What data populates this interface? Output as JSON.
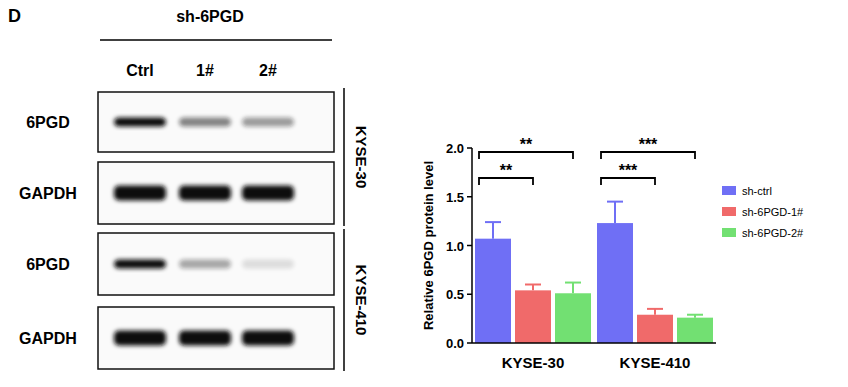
{
  "panel_label": "D",
  "blot": {
    "title": "sh-6PGD",
    "lanes": [
      "Ctrl",
      "1#",
      "2#"
    ],
    "rows": [
      {
        "label": "6PGD"
      },
      {
        "label": "GAPDH"
      },
      {
        "label": "6PGD"
      },
      {
        "label": "GAPDH"
      }
    ],
    "cell_lines": [
      "KYSE-30",
      "KYSE-410"
    ]
  },
  "chart_data": {
    "type": "bar",
    "y_label": "Relative 6PGD protein level",
    "categories": [
      "KYSE-30",
      "KYSE-410"
    ],
    "series": [
      {
        "name": "sh-ctrl",
        "color": "#6f6ff5",
        "values": [
          1.07,
          1.23
        ],
        "errors": [
          0.17,
          0.22
        ]
      },
      {
        "name": "sh-6PGD-1#",
        "color": "#f06a6a",
        "values": [
          0.54,
          0.29
        ],
        "errors": [
          0.06,
          0.06
        ]
      },
      {
        "name": "sh-6PGD-2#",
        "color": "#72e072",
        "values": [
          0.51,
          0.26
        ],
        "errors": [
          0.11,
          0.03
        ]
      }
    ],
    "ylim": [
      0,
      2.0
    ],
    "yticks": [
      {
        "value": 0,
        "label": "0.0"
      },
      {
        "value": 0.5,
        "label": "0.5"
      },
      {
        "value": 1.0,
        "label": "1.0"
      },
      {
        "value": 1.5,
        "label": "1.5"
      },
      {
        "value": 2.0,
        "label": "2.0"
      }
    ],
    "grid": false,
    "legend": "right",
    "annotations": [
      {
        "text": "**",
        "category": 0,
        "series": [
          0,
          1
        ]
      },
      {
        "text": "**",
        "category": 0,
        "series": [
          0,
          2
        ]
      },
      {
        "text": "***",
        "category": 1,
        "series": [
          0,
          1
        ]
      },
      {
        "text": "***",
        "category": 1,
        "series": [
          0,
          2
        ]
      }
    ]
  }
}
